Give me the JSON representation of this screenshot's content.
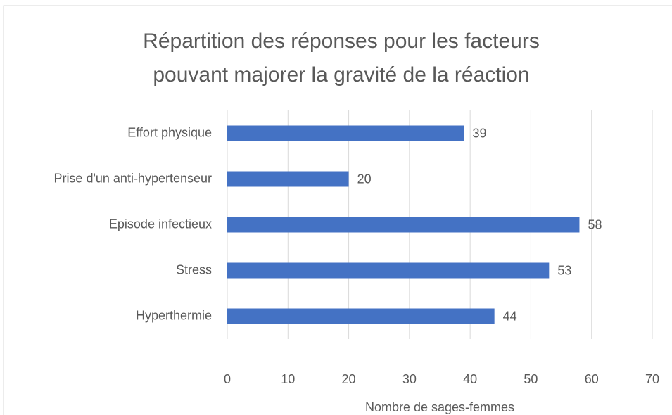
{
  "chart_data": {
    "type": "bar",
    "orientation": "horizontal",
    "title": [
      "Répartition des réponses pour les facteurs",
      "pouvant majorer la gravité de la réaction"
    ],
    "x_label": "Nombre de sages-femmes",
    "categories": [
      "Effort physique",
      "Prise d'un anti-hypertenseur",
      "Episode infectieux",
      "Stress",
      "Hyperthermie"
    ],
    "values": [
      39,
      20,
      58,
      53,
      44
    ],
    "color": "#4472c4",
    "xlim": [
      0,
      70
    ],
    "xticks": [
      0,
      10,
      20,
      30,
      40,
      50,
      60,
      70
    ],
    "grid": true
  }
}
